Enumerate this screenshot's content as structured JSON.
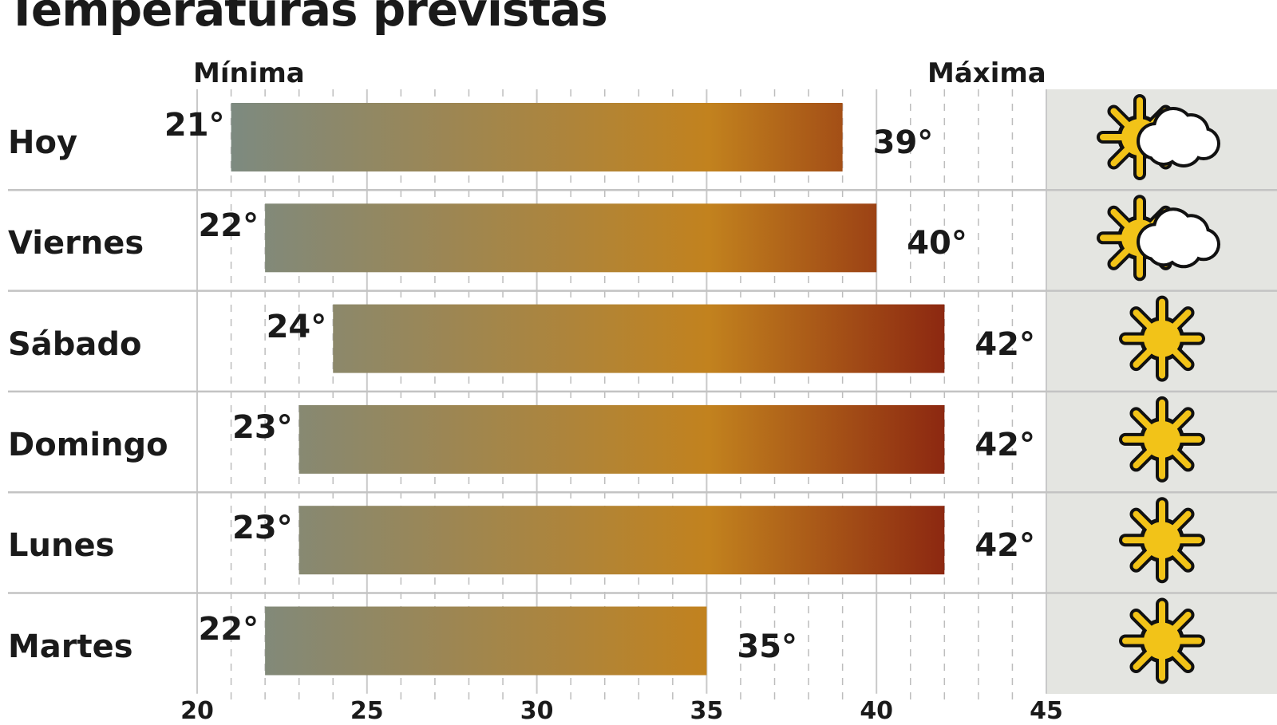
{
  "title": "Temperaturas previstas",
  "chart_data": {
    "type": "bar",
    "subtype": "floating-range",
    "title": "Temperaturas previstas",
    "column_headers": {
      "min": "Mínima",
      "max": "Máxima"
    },
    "categories": [
      "Hoy",
      "Viernes",
      "Sábado",
      "Domingo",
      "Lunes",
      "Martes"
    ],
    "min": [
      21,
      22,
      24,
      23,
      23,
      22
    ],
    "max": [
      39,
      40,
      42,
      42,
      42,
      35
    ],
    "min_labels": [
      "21°",
      "22°",
      "24°",
      "23°",
      "23°",
      "22°"
    ],
    "max_labels": [
      "39°",
      "40°",
      "42°",
      "42°",
      "42°",
      "35°"
    ],
    "icons": [
      "sun-cloud-icon",
      "sun-cloud-icon",
      "sun-icon",
      "sun-icon",
      "sun-icon",
      "sun-icon"
    ],
    "xlim": [
      20,
      45
    ],
    "xticks": [
      "20",
      "25",
      "30",
      "35",
      "40",
      "45"
    ],
    "grid": true,
    "colors": {
      "cool": "#7d8a80",
      "mid": "#c2821e",
      "hot": "#8a2410",
      "panel": "#e4e5e1",
      "sun": "#f2c318"
    }
  }
}
